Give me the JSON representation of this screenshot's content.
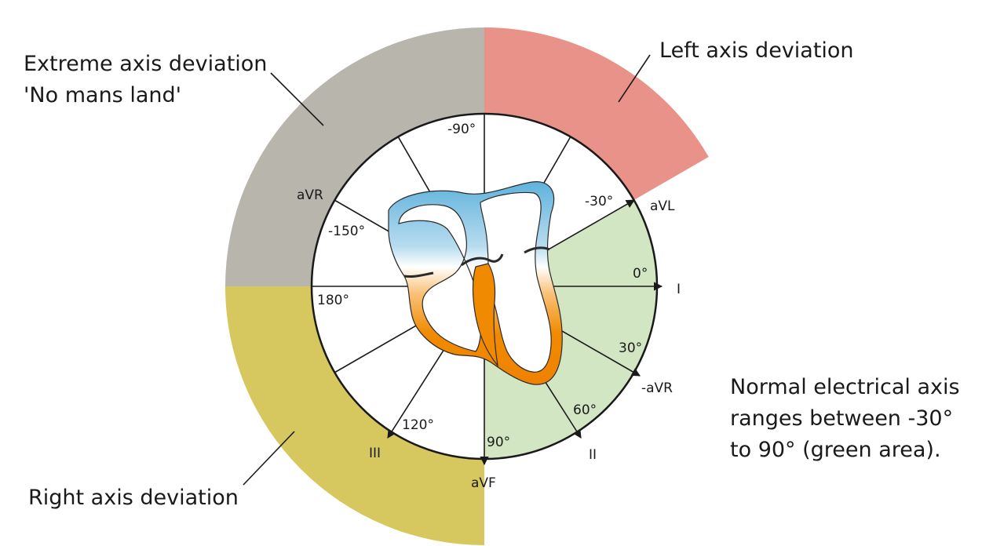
{
  "regions": {
    "extreme": {
      "title": "Extreme axis deviation",
      "subtitle": "'No mans land'",
      "color": "#b8b5ad"
    },
    "left": {
      "title": "Left axis deviation",
      "color": "#e8928a"
    },
    "right": {
      "title": "Right axis deviation",
      "color": "#d6c85e"
    },
    "normal": {
      "color": "#d2e6c4"
    }
  },
  "note": {
    "line1": "Normal electrical axis",
    "line2": "ranges between -30°",
    "line3": "to 90° (green area)."
  },
  "angles": {
    "minus90": "-90°",
    "minus30": "-30°",
    "minus150": "-150°",
    "zero": "0°",
    "d30": "30°",
    "d60": "60°",
    "d90": "90°",
    "d120": "120°",
    "d180": "180°"
  },
  "leads": {
    "avr": "aVR",
    "avl": "aVL",
    "i": "I",
    "minus_avr": "-aVR",
    "ii": "II",
    "avf": "aVF",
    "iii": "III"
  },
  "heart_colors": {
    "atria": "#6cb8de",
    "ventricles": "#f08a00"
  }
}
